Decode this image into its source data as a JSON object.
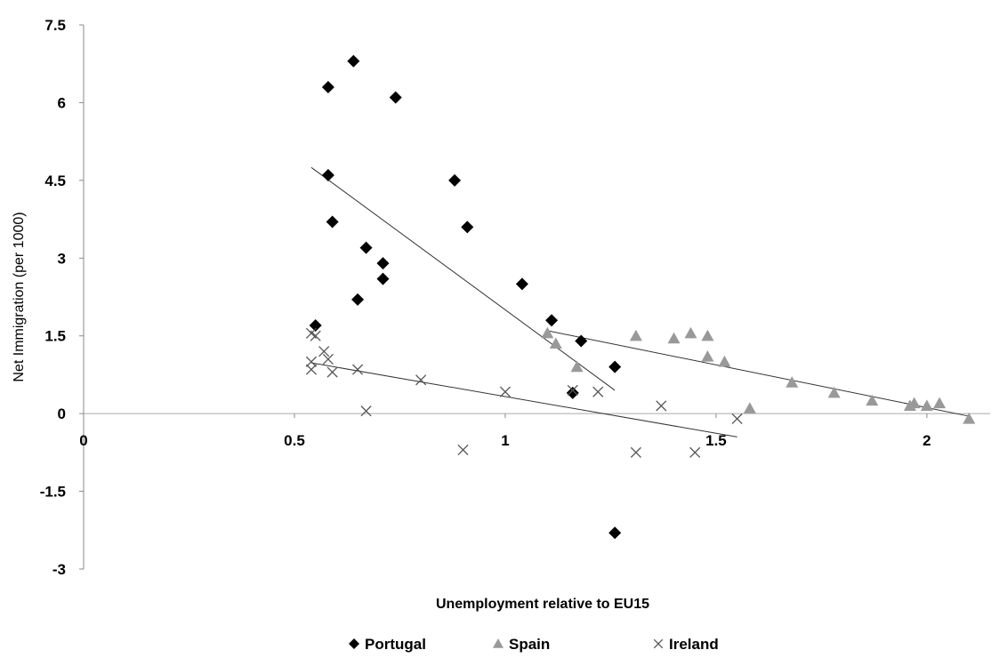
{
  "chart_data": {
    "type": "scatter",
    "xlabel": "Unemployment relative to EU15",
    "ylabel": "Net Immigration (per 1000)",
    "xlim": [
      0,
      2.1
    ],
    "ylim": [
      -3,
      7.5
    ],
    "x_ticks": [
      "0",
      "0.5",
      "1",
      "1.5",
      "2"
    ],
    "y_ticks": [
      "7.5",
      "6",
      "4.5",
      "3",
      "1.5",
      "0",
      "-1.5",
      "-3"
    ],
    "x_tick_values": [
      0,
      0.5,
      1,
      1.5,
      2
    ],
    "y_tick_values": [
      7.5,
      6,
      4.5,
      3,
      1.5,
      0,
      -1.5,
      -3
    ],
    "grid": false,
    "legend_position": "bottom",
    "series": [
      {
        "name": "Portugal",
        "marker": "diamond",
        "color": "#000000",
        "points": [
          [
            0.58,
            6.3
          ],
          [
            0.64,
            6.8
          ],
          [
            0.74,
            6.1
          ],
          [
            0.58,
            4.6
          ],
          [
            0.59,
            3.7
          ],
          [
            0.67,
            3.2
          ],
          [
            0.71,
            2.9
          ],
          [
            0.71,
            2.6
          ],
          [
            0.65,
            2.2
          ],
          [
            0.55,
            1.7
          ],
          [
            0.88,
            4.5
          ],
          [
            0.91,
            3.6
          ],
          [
            1.04,
            2.5
          ],
          [
            1.11,
            1.8
          ],
          [
            1.18,
            1.4
          ],
          [
            1.16,
            0.4
          ],
          [
            1.26,
            0.9
          ],
          [
            1.26,
            -2.3
          ]
        ],
        "trend": [
          [
            0.54,
            4.75
          ],
          [
            1.26,
            0.45
          ]
        ]
      },
      {
        "name": "Spain",
        "marker": "triangle",
        "color": "#999999",
        "points": [
          [
            1.1,
            1.55
          ],
          [
            1.12,
            1.35
          ],
          [
            1.17,
            0.9
          ],
          [
            1.31,
            1.5
          ],
          [
            1.4,
            1.45
          ],
          [
            1.44,
            1.55
          ],
          [
            1.48,
            1.5
          ],
          [
            1.48,
            1.1
          ],
          [
            1.52,
            1.0
          ],
          [
            1.58,
            0.1
          ],
          [
            1.68,
            0.6
          ],
          [
            1.78,
            0.4
          ],
          [
            1.87,
            0.25
          ],
          [
            1.96,
            0.15
          ],
          [
            1.97,
            0.2
          ],
          [
            2.0,
            0.15
          ],
          [
            2.03,
            0.2
          ],
          [
            2.1,
            -0.1
          ]
        ],
        "trend": [
          [
            1.1,
            1.6
          ],
          [
            2.1,
            -0.05
          ]
        ]
      },
      {
        "name": "Ireland",
        "marker": "x",
        "color": "#555555",
        "points": [
          [
            0.54,
            1.55
          ],
          [
            0.55,
            1.5
          ],
          [
            0.54,
            1.0
          ],
          [
            0.54,
            0.85
          ],
          [
            0.57,
            1.2
          ],
          [
            0.58,
            1.05
          ],
          [
            0.59,
            0.8
          ],
          [
            0.65,
            0.85
          ],
          [
            0.67,
            0.05
          ],
          [
            0.8,
            0.65
          ],
          [
            0.9,
            -0.7
          ],
          [
            1.0,
            0.42
          ],
          [
            1.16,
            0.45
          ],
          [
            1.22,
            0.42
          ],
          [
            1.31,
            -0.75
          ],
          [
            1.37,
            0.15
          ],
          [
            1.45,
            -0.75
          ],
          [
            1.55,
            -0.1
          ]
        ],
        "trend": [
          [
            0.54,
            0.98
          ],
          [
            1.55,
            -0.45
          ]
        ]
      }
    ]
  }
}
